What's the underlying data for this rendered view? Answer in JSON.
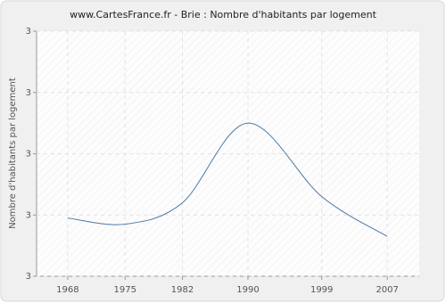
{
  "chart_data": {
    "type": "line",
    "title": "www.CartesFrance.fr - Brie : Nombre d'habitants par logement",
    "y_label": "Nombre d'habitants par logement",
    "x": [
      1968,
      1975,
      1982,
      1990,
      1999,
      2007
    ],
    "series": [
      {
        "name": "Nombre d'habitants par logement",
        "color": "#4a78a8",
        "values": [
          2.79,
          2.77,
          2.84,
          3.1,
          2.86,
          2.73
        ]
      }
    ],
    "xlim": [
      1964.2,
      2010.9
    ],
    "xticks": [
      1968,
      1975,
      1982,
      1990,
      1999,
      2007
    ],
    "ylim": [
      2.6,
      3.4
    ],
    "yticks": [
      {
        "value": 2.6,
        "label": "3"
      },
      {
        "value": 2.8,
        "label": "3"
      },
      {
        "value": 3.0,
        "label": "3"
      },
      {
        "value": 3.2,
        "label": "3"
      },
      {
        "value": 3.4,
        "label": "3"
      }
    ],
    "grid": true,
    "smooth": true
  }
}
